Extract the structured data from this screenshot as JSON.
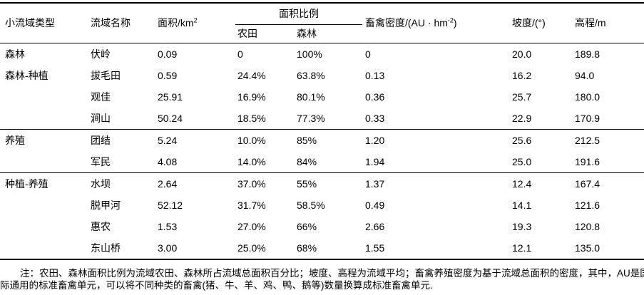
{
  "table": {
    "header": {
      "col_type": "小流域类型",
      "col_name": "流域名称",
      "col_area_base": "面积/km",
      "col_area_sup": "2",
      "col_ratio_group": "面积比例",
      "col_farmland": "农田",
      "col_forest": "森林",
      "col_density_base": "畜禽密度/(AU · hm",
      "col_density_sup": "-2",
      "col_density_close": ")",
      "col_slope": "坡度/(°)",
      "col_elevation": "高程/m"
    },
    "rows": [
      {
        "type": "森林",
        "name": "伏岭",
        "area": "0.09",
        "farmland": "0",
        "forest": "100%",
        "density": "0",
        "slope": "20.0",
        "elevation": "189.8",
        "section_start": false
      },
      {
        "type": "森林-种植",
        "name": "拔毛田",
        "area": "0.59",
        "farmland": "24.4%",
        "forest": "63.8%",
        "density": "0.13",
        "slope": "16.2",
        "elevation": "94.0",
        "section_start": false
      },
      {
        "type": "",
        "name": "观佳",
        "area": "25.91",
        "farmland": "16.9%",
        "forest": "80.1%",
        "density": "0.36",
        "slope": "25.7",
        "elevation": "180.0",
        "section_start": false
      },
      {
        "type": "",
        "name": "涧山",
        "area": "50.24",
        "farmland": "18.5%",
        "forest": "77.3%",
        "density": "0.33",
        "slope": "22.9",
        "elevation": "170.9",
        "section_start": false
      },
      {
        "type": "养殖",
        "name": "团结",
        "area": "5.24",
        "farmland": "10.0%",
        "forest": "85%",
        "density": "1.20",
        "slope": "25.6",
        "elevation": "212.5",
        "section_start": true
      },
      {
        "type": "",
        "name": "军民",
        "area": "4.08",
        "farmland": "14.0%",
        "forest": "84%",
        "density": "1.94",
        "slope": "25.0",
        "elevation": "191.6",
        "section_start": false
      },
      {
        "type": "种植-养殖",
        "name": "水坝",
        "area": "2.64",
        "farmland": "37.0%",
        "forest": "55%",
        "density": "1.37",
        "slope": "12.4",
        "elevation": "167.4",
        "section_start": true
      },
      {
        "type": "",
        "name": "脱甲河",
        "area": "52.12",
        "farmland": "31.7%",
        "forest": "58.5%",
        "density": "0.49",
        "slope": "14.1",
        "elevation": "121.6",
        "section_start": false
      },
      {
        "type": "",
        "name": "惠农",
        "area": "1.53",
        "farmland": "27.0%",
        "forest": "66%",
        "density": "2.66",
        "slope": "19.3",
        "elevation": "120.8",
        "section_start": false
      },
      {
        "type": "",
        "name": "东山桥",
        "area": "3.00",
        "farmland": "25.0%",
        "forest": "68%",
        "density": "1.55",
        "slope": "12.1",
        "elevation": "135.0",
        "section_start": false
      }
    ]
  },
  "footnote": {
    "line1": "注：农田、森林面积比例为流域农田、森林所占流域总面积百分比；坡度、高程为流域平均；畜禽养殖密度为基于流域总面积的密度，其中，AU是国",
    "line2": "际通用的标准畜禽单元，可以将不同种类的畜禽(猪、牛、羊、鸡、鸭、鹅等)数量换算成标准畜禽单元."
  }
}
